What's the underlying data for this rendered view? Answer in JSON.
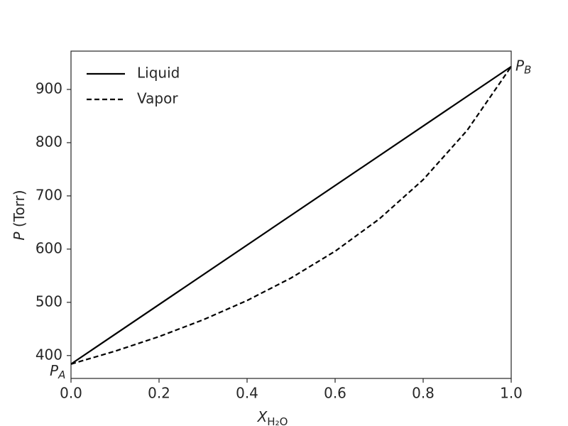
{
  "chart_data": {
    "type": "line",
    "xlabel": {
      "text": "X",
      "sub": "H₂O"
    },
    "ylabel": {
      "text": "P",
      "rest": " (Torr)"
    },
    "series": [
      {
        "name": "Liquid",
        "color": "#000000",
        "style": "solid",
        "x": [
          0,
          1
        ],
        "values": [
          384,
          943
        ]
      },
      {
        "name": "Vapor",
        "color": "#000000",
        "style": "dashed",
        "x": [
          0,
          0.1,
          0.2,
          0.3,
          0.4,
          0.5,
          0.6,
          0.7,
          0.8,
          0.9,
          1
        ],
        "values": [
          384,
          408.2,
          435.6,
          467.1,
          503.4,
          545.8,
          596.0,
          656.4,
          730.4,
          823.2,
          943
        ]
      }
    ],
    "annotations": [
      {
        "text": "P",
        "sub": "A"
      },
      {
        "text": "P",
        "sub": "B"
      }
    ],
    "xlim": [
      0,
      1
    ],
    "xticks": [
      {
        "value": 0,
        "label": "0.0"
      },
      {
        "value": 0.2,
        "label": "0.2"
      },
      {
        "value": 0.4,
        "label": "0.4"
      },
      {
        "value": 0.6,
        "label": "0.6"
      },
      {
        "value": 0.8,
        "label": "0.8"
      },
      {
        "value": 1,
        "label": "1.0"
      }
    ],
    "ylim": [
      357,
      972
    ],
    "yticks": [
      400,
      500,
      600,
      700,
      800,
      900
    ],
    "legend": "upper left",
    "grid": false
  }
}
